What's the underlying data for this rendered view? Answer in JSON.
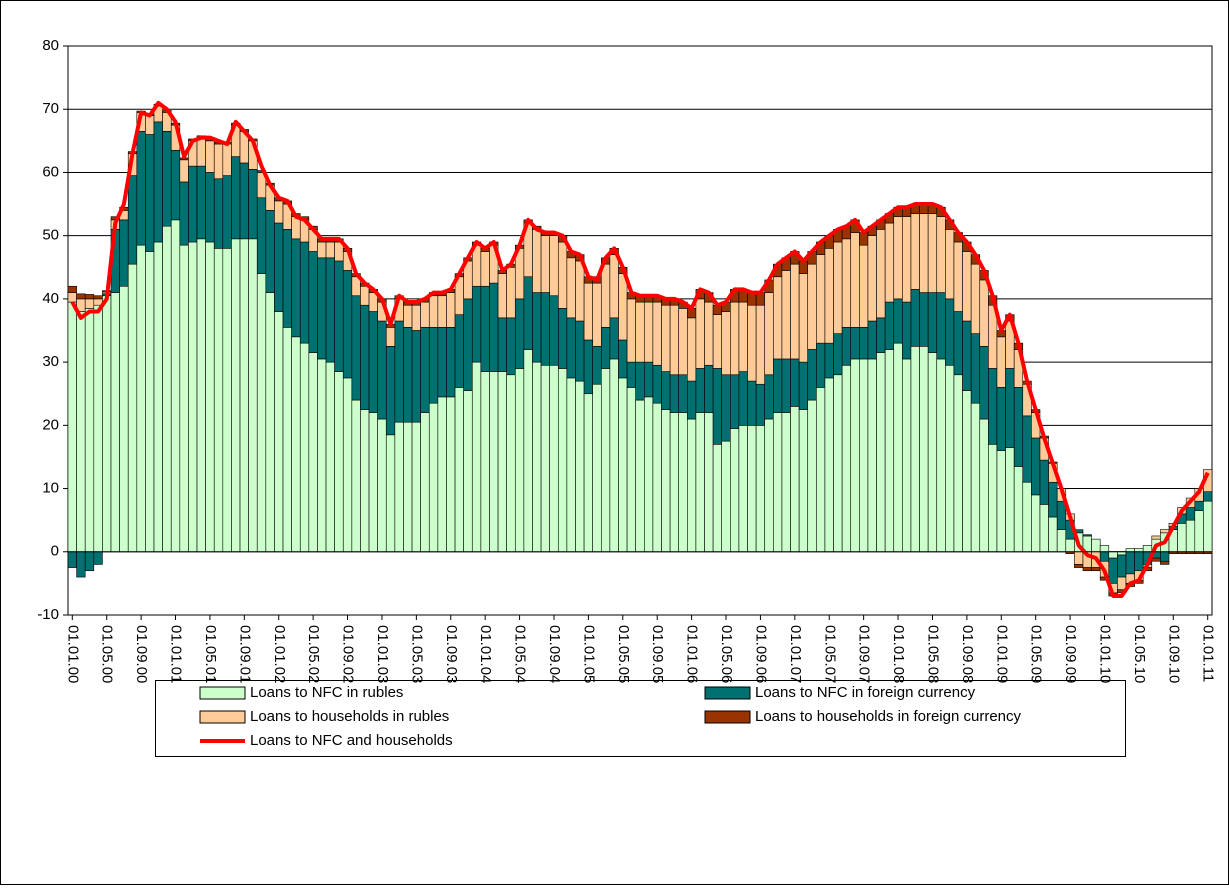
{
  "chart_data": {
    "type": "bar",
    "stacked": true,
    "grid": true,
    "ylim": [
      -10,
      80
    ],
    "yticks": [
      -10,
      0,
      10,
      20,
      30,
      40,
      50,
      60,
      70,
      80
    ],
    "categories": [
      "01.01.00",
      null,
      null,
      null,
      "01.05.00",
      null,
      null,
      null,
      "01.09.00",
      null,
      null,
      null,
      "01.01.01",
      null,
      null,
      null,
      "01.05.01",
      null,
      null,
      null,
      "01.09.01",
      null,
      null,
      null,
      "01.01.02",
      null,
      null,
      null,
      "01.05.02",
      null,
      null,
      null,
      "01.09.02",
      null,
      null,
      null,
      "01.01.03",
      null,
      null,
      null,
      "01.05.03",
      null,
      null,
      null,
      "01.09.03",
      null,
      null,
      null,
      "01.01.04",
      null,
      null,
      null,
      "01.05.04",
      null,
      null,
      null,
      "01.09.04",
      null,
      null,
      null,
      "01.01.05",
      null,
      null,
      null,
      "01.05.05",
      null,
      null,
      null,
      "01.09.05",
      null,
      null,
      null,
      "01.01.06",
      null,
      null,
      null,
      "01.05.06",
      null,
      null,
      null,
      "01.09.06",
      null,
      null,
      null,
      "01.01.07",
      null,
      null,
      null,
      "01.05.07",
      null,
      null,
      null,
      "01.09.07",
      null,
      null,
      null,
      "01.01.08",
      null,
      null,
      null,
      "01.05.08",
      null,
      null,
      null,
      "01.09.08",
      null,
      null,
      null,
      "01.01.09",
      null,
      null,
      null,
      "01.05.09",
      null,
      null,
      null,
      "01.09.09",
      null,
      null,
      null,
      "01.01.10",
      null,
      null,
      null,
      "01.05.10",
      null,
      null,
      null,
      "01.09.10",
      null,
      null,
      null,
      "01.01.11"
    ],
    "series": [
      {
        "name": "Loans to NFC in rubles",
        "color": "#ccffcc",
        "values": [
          39.5,
          38,
          38.5,
          39,
          40.5,
          41,
          42,
          45.5,
          48.5,
          47.5,
          49,
          51.5,
          52.5,
          48.5,
          49,
          49.5,
          49,
          48,
          48,
          49.5,
          49.5,
          49.5,
          44,
          41,
          38,
          35.5,
          34,
          33,
          31.5,
          30.5,
          30,
          28.5,
          27.5,
          24,
          22.5,
          22,
          21,
          18.5,
          20.5,
          20.5,
          20.5,
          22,
          23.5,
          24.5,
          24.5,
          26,
          25.5,
          30,
          28.5,
          28.5,
          28.5,
          28,
          29,
          32,
          30,
          29.5,
          29.5,
          29,
          27.5,
          27,
          25,
          26.5,
          29,
          30.5,
          27.5,
          26,
          24,
          24.5,
          23.5,
          22.5,
          22,
          22,
          21,
          22,
          22,
          17,
          17.5,
          19.5,
          20,
          20,
          20,
          21,
          22,
          22,
          23,
          22.5,
          24,
          26,
          27.5,
          28,
          29.5,
          30.5,
          30.5,
          30.5,
          31.5,
          32,
          33,
          30.5,
          32.5,
          32.5,
          31.5,
          30.5,
          29.5,
          28,
          25.5,
          23.5,
          21,
          17,
          16,
          16.5,
          13.5,
          11,
          9,
          7.5,
          5.5,
          3.5,
          2,
          3,
          2.5,
          2,
          1,
          -1,
          -0.5,
          0.5,
          0.5,
          1,
          2,
          3,
          3.5,
          4.5,
          5,
          6.5,
          8
        ]
      },
      {
        "name": "Loans to NFC in foreign currency",
        "color": "#007070",
        "values": [
          -2.5,
          -4,
          -3,
          -2,
          0.3,
          10,
          10.5,
          14,
          18,
          18.5,
          19,
          15,
          11,
          10,
          12,
          11.5,
          11,
          11,
          11.5,
          13,
          12,
          11,
          12,
          13,
          14,
          15.5,
          15.5,
          16,
          16,
          16,
          16.5,
          17.5,
          17,
          16.5,
          16.5,
          16,
          15.5,
          14,
          16,
          15,
          14.5,
          13.5,
          12,
          11,
          11,
          11.5,
          14.5,
          12,
          13.5,
          14,
          8.5,
          9,
          11,
          11.5,
          11,
          11.5,
          11,
          9.5,
          9.5,
          9.5,
          8.5,
          6,
          6.5,
          6.5,
          6,
          4,
          6,
          5.5,
          6,
          6,
          6,
          6,
          6,
          7,
          7.5,
          12,
          10.5,
          8.5,
          8.5,
          7,
          6.5,
          7,
          8.5,
          8.5,
          7.5,
          7.5,
          8,
          7,
          5.5,
          6.5,
          6,
          5,
          5,
          6,
          5.5,
          7.5,
          7,
          9,
          9,
          8.5,
          9.5,
          10.5,
          10.5,
          10,
          11,
          11,
          11.5,
          12,
          10,
          12.5,
          12.5,
          10.5,
          9,
          7,
          5.5,
          4.5,
          3,
          0.5,
          0.2,
          0,
          -1.5,
          -4,
          -3.5,
          -3.5,
          -3,
          -2,
          -1,
          -1.5,
          0.5,
          1.5,
          2,
          1.5,
          1.5
        ]
      },
      {
        "name": "Loans to households in rubles",
        "color": "#ffcc99",
        "values": [
          1.5,
          2,
          1.5,
          1,
          0.3,
          1.5,
          1.5,
          3.5,
          3,
          3,
          2.5,
          3,
          4,
          3.5,
          4,
          4.5,
          5,
          5.5,
          5,
          5,
          5,
          4.5,
          4,
          4,
          3.5,
          4,
          3.5,
          3.5,
          3.5,
          2.5,
          2.5,
          3,
          3,
          3,
          3,
          3,
          3,
          3,
          3.5,
          3.5,
          4,
          4,
          5,
          5,
          5.5,
          6,
          6,
          6.5,
          5.5,
          6,
          7,
          8,
          8,
          8.5,
          10,
          9,
          9.5,
          10.5,
          9.5,
          9.5,
          9,
          10,
          10,
          10,
          10.5,
          10,
          9.5,
          9.5,
          10,
          10.5,
          11,
          10.5,
          10,
          11,
          10,
          8.5,
          10,
          11.5,
          11,
          12,
          12.5,
          13,
          13,
          14,
          15,
          14,
          13.5,
          14,
          15,
          14.5,
          14,
          15,
          13,
          13.5,
          14,
          12.5,
          13,
          13.5,
          12,
          12.5,
          12.5,
          12,
          11,
          11,
          11,
          11,
          10.5,
          10,
          8,
          7.5,
          6,
          5,
          4,
          3.5,
          3,
          2,
          1,
          -2,
          -2.5,
          -2.5,
          -2.5,
          -1.5,
          -2,
          -1.5,
          -1.5,
          -0.5,
          0.5,
          0.5,
          0.5,
          1,
          1.5,
          2,
          3.5
        ]
      },
      {
        "name": "Loans to households in foreign currency",
        "color": "#993300",
        "values": [
          1,
          0.8,
          0.7,
          0.5,
          0.2,
          0.5,
          0.5,
          0.3,
          0.2,
          0.2,
          0.3,
          0.3,
          0.3,
          0.3,
          0.3,
          0.3,
          0.3,
          0.3,
          0.3,
          0.3,
          0.3,
          0.3,
          0.3,
          0.3,
          0.5,
          0.5,
          0.5,
          0.5,
          0.5,
          0.5,
          0.5,
          0.5,
          0.5,
          0.5,
          0.5,
          0.5,
          0.5,
          0.5,
          0.5,
          0.5,
          0.5,
          0.5,
          0.5,
          0.5,
          0.5,
          0.5,
          0.5,
          0.5,
          0.5,
          0.5,
          0.5,
          0.5,
          0.5,
          0.5,
          0.5,
          0.5,
          0.5,
          1,
          1,
          1,
          1,
          1,
          1,
          1,
          1,
          1,
          1,
          1,
          1,
          1,
          1,
          1,
          1.5,
          1.5,
          1.5,
          1.5,
          1.5,
          2,
          2,
          2,
          2,
          2,
          2,
          2,
          2,
          2,
          2,
          2,
          2,
          2,
          2,
          2,
          2,
          1.5,
          1.5,
          1.5,
          1.5,
          1.5,
          1.5,
          1.5,
          1.5,
          1.5,
          1.5,
          1.5,
          1.5,
          1.5,
          1.5,
          1.5,
          1,
          1,
          1,
          0.5,
          0.5,
          0.3,
          0.2,
          0,
          -0.3,
          -0.5,
          -0.5,
          -0.5,
          -0.5,
          -0.5,
          -0.5,
          -0.5,
          -0.5,
          -0.5,
          -0.5,
          -0.5,
          -0.3,
          -0.3,
          -0.3,
          -0.3,
          -0.3
        ]
      },
      {
        "name": "Loans to NFC and households",
        "color": "#ff0000",
        "type": "line",
        "values": [
          39.5,
          37,
          38,
          38,
          40,
          52,
          55,
          63,
          69.5,
          69,
          71,
          70,
          68,
          62.5,
          65,
          65.5,
          65.5,
          65,
          64.5,
          68,
          66.5,
          65,
          61,
          58,
          56,
          55.5,
          53,
          52.5,
          51,
          49.5,
          49.5,
          49.5,
          48,
          44,
          42.5,
          41.5,
          40,
          36,
          40.5,
          39.5,
          39.5,
          40,
          41,
          41,
          41.5,
          44,
          46.5,
          49,
          48,
          49,
          44.5,
          45.5,
          48.5,
          52.5,
          51,
          50.5,
          50.5,
          50,
          47.5,
          47,
          43.5,
          43,
          46.5,
          48,
          45,
          41,
          40.5,
          40.5,
          40.5,
          40,
          40,
          39.5,
          38.5,
          41.5,
          41,
          39,
          39.5,
          41.5,
          41.5,
          41,
          41,
          43,
          45.5,
          46.5,
          47.5,
          46,
          47.5,
          49,
          50,
          51,
          51.5,
          52.5,
          50.5,
          51.5,
          52.5,
          53.5,
          54.5,
          54.5,
          55,
          55,
          55,
          54.5,
          52.5,
          50.5,
          49,
          47,
          44.5,
          40.5,
          35,
          37.5,
          33,
          27,
          22.5,
          18,
          14,
          10,
          5.5,
          1,
          -0.5,
          -1,
          -3,
          -7,
          -7,
          -5,
          -4.5,
          -2,
          1,
          1.5,
          4,
          6.5,
          8,
          9.5,
          12.5
        ]
      }
    ]
  }
}
